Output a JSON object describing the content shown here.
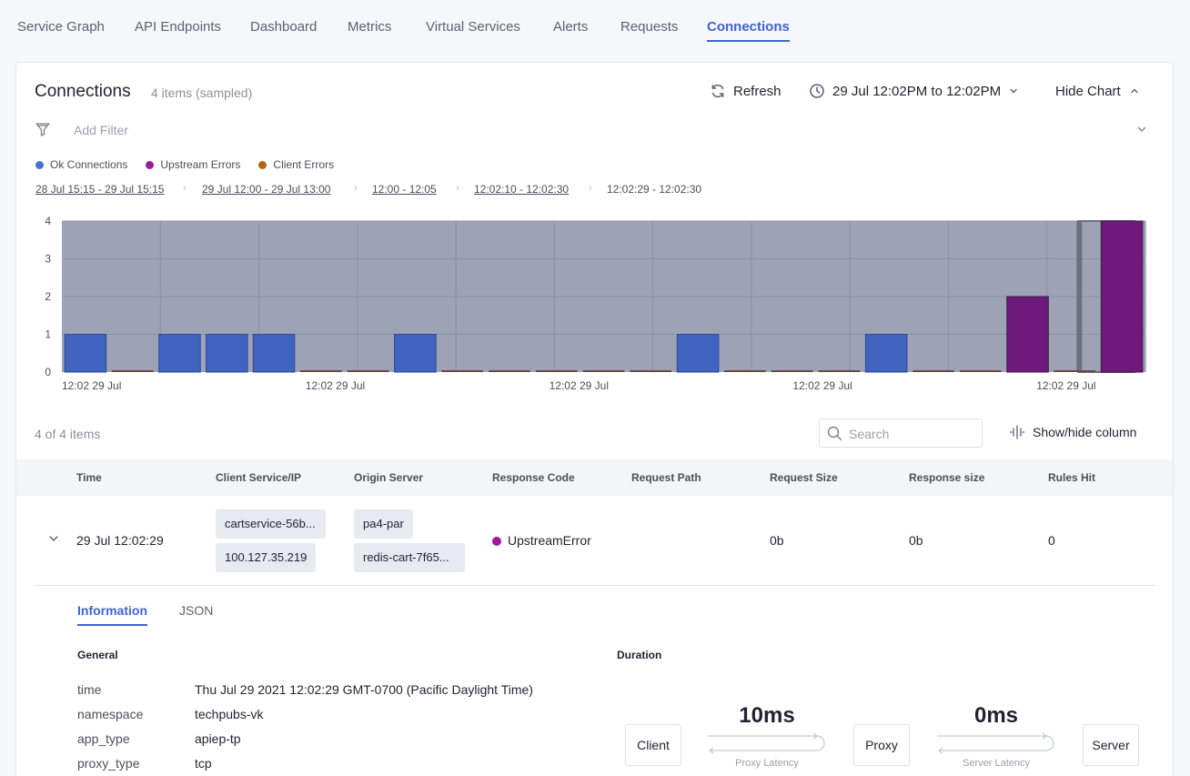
{
  "nav": {
    "tabs": [
      "Service Graph",
      "API Endpoints",
      "Dashboard",
      "Metrics",
      "Virtual Services",
      "Alerts",
      "Requests",
      "Connections"
    ],
    "active": "Connections"
  },
  "header": {
    "title": "Connections",
    "count": "4 items (sampled)",
    "refresh_label": "Refresh",
    "time_range": "29 Jul 12:02PM to 12:02PM",
    "hide_chart_label": "Hide Chart"
  },
  "filter": {
    "placeholder": "Add Filter"
  },
  "legend": [
    {
      "label": "Ok Connections",
      "color": "#4a6fd8"
    },
    {
      "label": "Upstream Errors",
      "color": "#a3189f"
    },
    {
      "label": "Client Errors",
      "color": "#b5620f"
    }
  ],
  "breadcrumbs": [
    "28 Jul 15:15 - 29 Jul 15:15",
    "29 Jul 12:00 - 29 Jul 13:00",
    "12:00 - 12:05",
    "12:02:10 - 12:02:30",
    "12:02:29 - 12:02:30"
  ],
  "chart_data": {
    "type": "bar",
    "y_ticks": [
      "0",
      "1",
      "2",
      "3",
      "4"
    ],
    "ylim": [
      0,
      4
    ],
    "x_tick_labels": [
      "12:02 29 Jul",
      "12:02 29 Jul",
      "12:02 29 Jul",
      "12:02 29 Jul",
      "12:02 29 Jul"
    ],
    "grid": true,
    "series": [
      {
        "name": "Ok Connections",
        "color": "#3f63bf",
        "values": [
          1,
          0,
          1,
          1,
          1,
          0,
          0,
          1,
          0,
          0,
          0,
          0,
          0,
          1,
          0,
          0,
          0,
          1,
          0,
          0,
          0,
          0,
          0
        ]
      },
      {
        "name": "Upstream Errors",
        "color": "#a3189f",
        "values": [
          0,
          0,
          0,
          0,
          0,
          0,
          0,
          0,
          0,
          0,
          0,
          0,
          0,
          0,
          0,
          0,
          0,
          0,
          0,
          0,
          2,
          0,
          4
        ]
      }
    ],
    "faded_bar_color": "#6d1a7a",
    "selected_index": 21
  },
  "table": {
    "count_text": "4 of 4 items",
    "search_placeholder": "Search",
    "show_hide_label": "Show/hide column",
    "columns": [
      "Time",
      "Client Service/IP",
      "Origin Server",
      "Response Code",
      "Request Path",
      "Request Size",
      "Response size",
      "Rules Hit"
    ],
    "row": {
      "time": "29 Jul 12:02:29",
      "client_service": "cartservice-56b...",
      "client_ip": "100.127.35.219",
      "origin_1": "pa4-par",
      "origin_2": "redis-cart-7f65...",
      "response_code": "UpstreamError",
      "request_path": "",
      "request_size": "0b",
      "response_size": "0b",
      "rules_hit": "0"
    }
  },
  "details": {
    "tabs": [
      "Information",
      "JSON"
    ],
    "general_title": "General",
    "duration_title": "Duration",
    "fields": [
      {
        "key": "time",
        "value": "Thu Jul 29 2021 12:02:29 GMT-0700 (Pacific Daylight Time)"
      },
      {
        "key": "namespace",
        "value": "techpubs-vk"
      },
      {
        "key": "app_type",
        "value": "apiep-tp"
      },
      {
        "key": "proxy_type",
        "value": "tcp"
      }
    ],
    "duration": {
      "client": "Client",
      "proxy": "Proxy",
      "server": "Server",
      "proxy_latency": "10ms",
      "proxy_latency_label": "Proxy Latency",
      "server_latency": "0ms",
      "server_latency_label": "Server Latency"
    }
  }
}
